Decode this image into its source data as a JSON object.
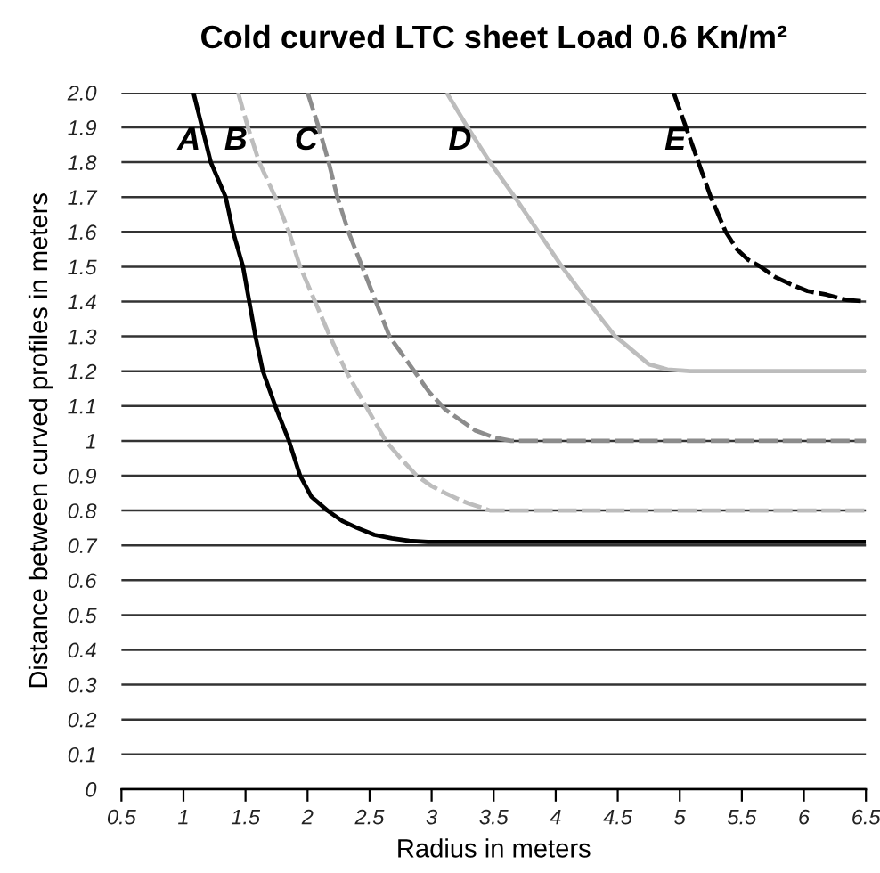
{
  "chart_data": {
    "type": "line",
    "title": "Cold curved LTC sheet Load 0.6 Kn/m²",
    "xlabel": "Radius in meters",
    "ylabel": "Distance between curved profiles in meters",
    "xlim": [
      0.5,
      6.5
    ],
    "ylim": [
      0,
      2
    ],
    "xticks": [
      0.5,
      1,
      1.5,
      2,
      2.5,
      3,
      3.5,
      4,
      4.5,
      5,
      5.5,
      6,
      6.5
    ],
    "yticks": [
      0,
      0.1,
      0.2,
      0.3,
      0.4,
      0.5,
      0.6,
      0.7,
      0.8,
      0.9,
      1,
      1.1,
      1.2,
      1.3,
      1.4,
      1.5,
      1.6,
      1.7,
      1.8,
      1.9,
      {
        "value": 2,
        "label": "2.0"
      }
    ],
    "grid": "y",
    "series": [
      {
        "name": "A",
        "color": "#000000",
        "line_style": "solid",
        "x": [
          1.08,
          1.22,
          1.34,
          1.4,
          1.48,
          1.53,
          1.58,
          1.64,
          1.74,
          1.85,
          1.94,
          2.03,
          2.16,
          2.28,
          2.4,
          2.54,
          2.68,
          2.82,
          2.97,
          6.5
        ],
        "values": [
          2.0,
          1.8,
          1.7,
          1.6,
          1.5,
          1.4,
          1.3,
          1.2,
          1.1,
          1.0,
          0.9,
          0.84,
          0.8,
          0.77,
          0.75,
          0.73,
          0.72,
          0.713,
          0.71,
          0.71
        ]
      },
      {
        "name": "B",
        "color": "#bdbdbd",
        "line_style": "dashed",
        "x": [
          1.44,
          1.52,
          1.61,
          1.74,
          1.85,
          1.94,
          2.06,
          2.18,
          2.31,
          2.47,
          2.63,
          2.75,
          2.88,
          3.0,
          3.11,
          3.2,
          3.3,
          3.39,
          3.47,
          6.5
        ],
        "values": [
          2.0,
          1.9,
          1.8,
          1.7,
          1.6,
          1.5,
          1.4,
          1.3,
          1.2,
          1.1,
          1.0,
          0.95,
          0.9,
          0.87,
          0.85,
          0.835,
          0.82,
          0.81,
          0.8,
          0.8
        ]
      },
      {
        "name": "C",
        "color": "#8c8c8c",
        "line_style": "dashed",
        "x": [
          2.0,
          2.09,
          2.17,
          2.24,
          2.33,
          2.44,
          2.55,
          2.66,
          2.76,
          2.86,
          2.98,
          3.11,
          3.23,
          3.35,
          3.5,
          3.64,
          6.5
        ],
        "values": [
          2.0,
          1.9,
          1.8,
          1.7,
          1.6,
          1.5,
          1.4,
          1.3,
          1.25,
          1.2,
          1.14,
          1.09,
          1.06,
          1.03,
          1.01,
          1.0,
          1.0
        ]
      },
      {
        "name": "D",
        "color": "#bdbdbd",
        "line_style": "solid",
        "x": [
          3.12,
          3.29,
          3.47,
          3.67,
          3.86,
          4.05,
          4.26,
          4.48,
          4.55,
          4.65,
          4.75,
          4.9,
          5.08,
          6.5
        ],
        "values": [
          2.0,
          1.9,
          1.8,
          1.7,
          1.6,
          1.5,
          1.4,
          1.3,
          1.28,
          1.25,
          1.22,
          1.205,
          1.2,
          1.2
        ]
      },
      {
        "name": "E",
        "color": "#000000",
        "line_style": "dashed",
        "x": [
          4.95,
          5.05,
          5.15,
          5.25,
          5.37,
          5.46,
          5.55,
          5.65,
          5.77,
          5.89,
          6.03,
          6.18,
          6.34,
          6.5
        ],
        "values": [
          2.0,
          1.9,
          1.8,
          1.7,
          1.6,
          1.55,
          1.52,
          1.5,
          1.47,
          1.45,
          1.43,
          1.42,
          1.405,
          1.4
        ]
      }
    ]
  }
}
